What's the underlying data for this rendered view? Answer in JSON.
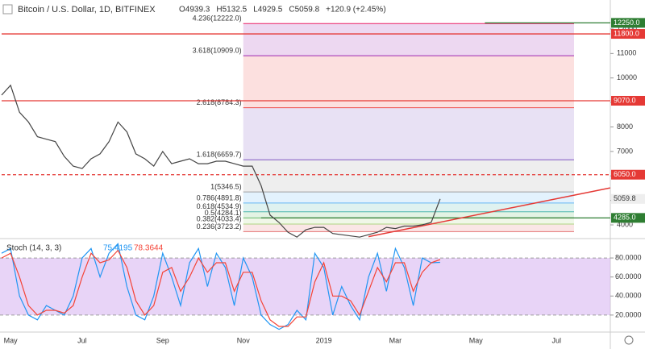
{
  "chart_data": [
    {
      "type": "line",
      "title": "Bitcoin / U.S. Dollar, 1D, BITFINEX",
      "ohlc": [
        "O4939.3",
        "H5132.5",
        "L4929.5",
        "C5059.8",
        "+120.9 (+2.45%)"
      ],
      "categories": [
        null,
        "May",
        null,
        null,
        null,
        null,
        null,
        null,
        null,
        "Jul",
        null,
        null,
        null,
        null,
        null,
        null,
        null,
        null,
        "Sep",
        null,
        null,
        null,
        null,
        null,
        null,
        null,
        null,
        "Nov",
        null,
        null,
        null,
        null,
        null,
        null,
        null,
        null,
        "2019",
        null,
        null,
        null,
        null,
        null,
        null,
        null,
        "Mar",
        null,
        null,
        null,
        null,
        null,
        null,
        null,
        null,
        "May",
        null,
        null,
        null,
        null,
        null,
        null,
        null,
        null,
        "Jul",
        null,
        null,
        null,
        null,
        null
      ],
      "values": [
        9300,
        9700,
        8600,
        8200,
        7600,
        7500,
        7400,
        6800,
        6400,
        6300,
        6700,
        6900,
        7400,
        8200,
        7800,
        6900,
        6700,
        6400,
        7000,
        6500,
        6600,
        6700,
        6500,
        6500,
        6600,
        6600,
        6500,
        6400,
        6400,
        5600,
        4400,
        4100,
        3700,
        3500,
        3800,
        3900,
        3900,
        3650,
        3600,
        3550,
        3500,
        3600,
        3700,
        3900,
        3850,
        3950,
        3950,
        4000,
        4100,
        5059.8,
        null,
        null,
        null,
        null,
        null,
        null,
        null,
        null,
        null,
        null,
        null,
        null,
        null,
        null,
        null,
        null,
        null,
        null
      ],
      "color": "#444444",
      "ylim": [
        3474,
        13184
      ],
      "yticks": [
        4000,
        5000,
        6000,
        7000,
        8000,
        9000,
        10000,
        11000,
        12000
      ],
      "fib_levels": [
        {
          "label": "0.236(3723.2)",
          "value": 3723.2,
          "color": "#e57373"
        },
        {
          "label": "0.382(4033.4)",
          "value": 4033.4,
          "color": "#aed581"
        },
        {
          "label": "0.5(4284.1)",
          "value": 4284.1,
          "color": "#66bb6a"
        },
        {
          "label": "0.618(4534.9)",
          "value": 4534.9,
          "color": "#4db6ac"
        },
        {
          "label": "0.786(4891.8)",
          "value": 4891.8,
          "color": "#64b5f6"
        },
        {
          "label": "1(5346.5)",
          "value": 5346.5,
          "color": "#9e9e9e"
        },
        {
          "label": "1.618(6659.7)",
          "value": 6659.7,
          "color": "#7e57c2"
        },
        {
          "label": "2.618(8784.3)",
          "value": 8784.3,
          "color": "#ef5350"
        },
        {
          "label": "3.618(10909.0)",
          "value": 10909.0,
          "color": "#9c27b0"
        },
        {
          "label": "4.236(12222.0)",
          "value": 12222.0,
          "color": "#e91e63"
        }
      ],
      "levels": [
        {
          "value": 12250,
          "label": "12250.0",
          "color": "#2e7d32",
          "from": 54
        },
        {
          "value": 11800,
          "label": "11800.0",
          "color": "#e53935",
          "from": 0
        },
        {
          "value": 9070,
          "label": "9070.0",
          "color": "#e53935",
          "from": 0
        },
        {
          "value": 6050,
          "label": "6050.0",
          "color": "#e53935",
          "from": 0,
          "dashed": true
        },
        {
          "value": 4285,
          "label": "4285.0",
          "color": "#2e7d32",
          "from": 29
        }
      ],
      "trendline": {
        "from": [
          41,
          3520
        ],
        "to": [
          68,
          5510
        ],
        "color": "#e53935"
      }
    },
    {
      "type": "line",
      "title": "Stoch (14, 3, 3)",
      "series": [
        {
          "color": "#2196f3",
          "values": [
            85,
            90,
            40,
            20,
            15,
            30,
            25,
            20,
            40,
            80,
            90,
            60,
            85,
            95,
            50,
            20,
            15,
            40,
            85,
            60,
            30,
            75,
            90,
            50,
            85,
            70,
            30,
            80,
            60,
            20,
            10,
            5,
            10,
            25,
            15,
            85,
            70,
            20,
            50,
            30,
            15,
            60,
            85,
            45,
            90,
            70,
            30,
            80,
            75,
            75.4195
          ]
        },
        {
          "color": "#f44336",
          "values": [
            80,
            85,
            60,
            30,
            20,
            25,
            25,
            22,
            30,
            60,
            85,
            75,
            78,
            88,
            70,
            35,
            20,
            30,
            65,
            70,
            45,
            60,
            80,
            65,
            75,
            75,
            45,
            65,
            65,
            35,
            15,
            8,
            8,
            18,
            18,
            55,
            75,
            40,
            40,
            35,
            20,
            45,
            70,
            55,
            75,
            75,
            45,
            65,
            75,
            78.3644
          ]
        }
      ],
      "ylim": [
        3.8,
        98.7
      ],
      "yticks": [
        {
          "value": 20,
          "label": "20.0000"
        },
        {
          "value": 40,
          "label": "40.0000"
        },
        {
          "value": 60,
          "label": "60.0000"
        },
        {
          "value": 80,
          "label": "80.0000"
        }
      ],
      "band": [
        20,
        80
      ]
    }
  ]
}
